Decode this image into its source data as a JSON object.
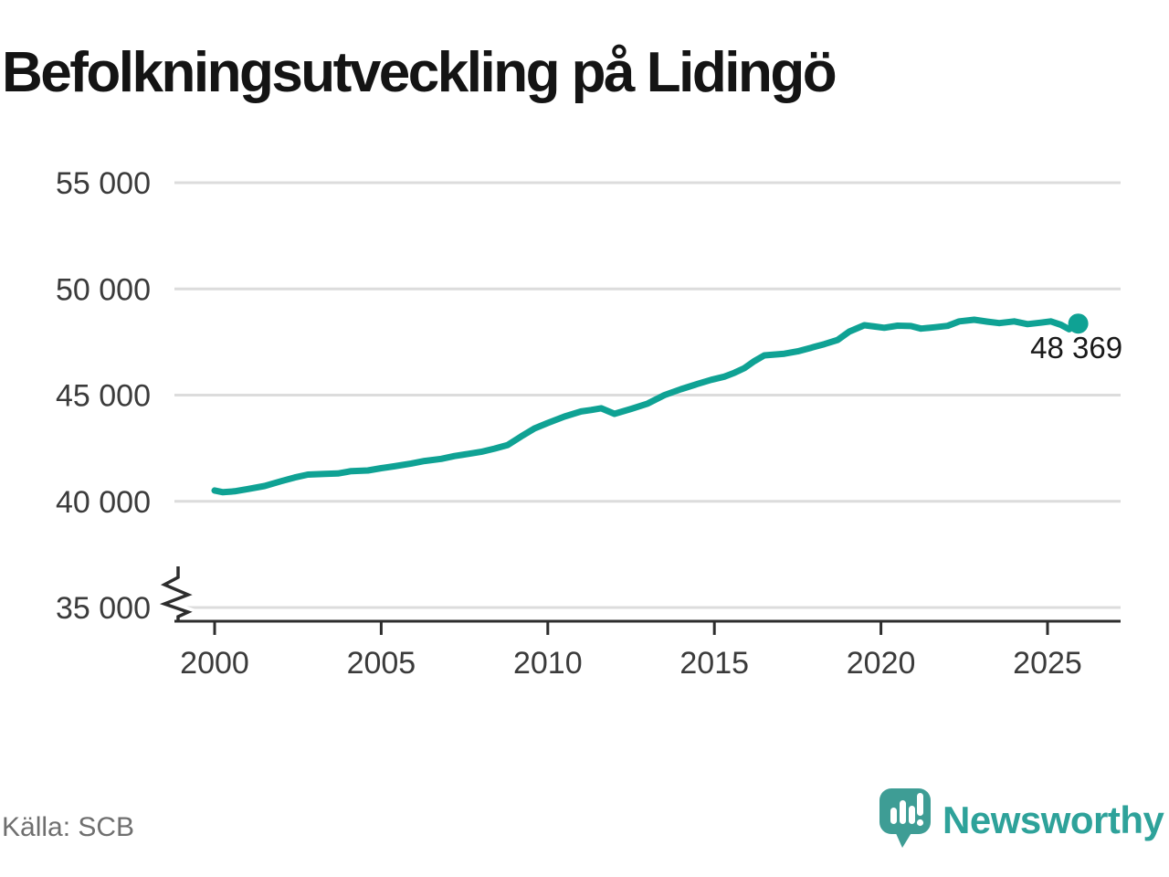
{
  "header": {
    "title": "Befolkningsutveckling på Lidingö"
  },
  "footer": {
    "source": "Källa: SCB",
    "logo_text": "Newsworthy"
  },
  "colors": {
    "line": "#0fa294",
    "logo_icon": "#3e9d95",
    "logo_text": "#2ea29a",
    "grid": "#dcdcdc",
    "axis": "#2d2d2d",
    "tick_label": "#3b3b3b",
    "title": "#141414",
    "source": "#6f6f6f",
    "background": "#ffffff"
  },
  "chart_data": {
    "type": "line",
    "title": "Befolkningsutveckling på Lidingö",
    "xlabel": "",
    "ylabel": "",
    "grid": true,
    "legend": false,
    "axis_break": true,
    "ylim": [
      35000,
      55000
    ],
    "xlim": [
      1998.8,
      2027.3
    ],
    "x_ticks": [
      2000,
      2005,
      2010,
      2015,
      2020,
      2025
    ],
    "y_ticks": [
      {
        "value": 35000,
        "label": "35 000"
      },
      {
        "value": 40000,
        "label": "40 000"
      },
      {
        "value": 45000,
        "label": "45 000"
      },
      {
        "value": 50000,
        "label": "50 000"
      },
      {
        "value": 55000,
        "label": "55 000"
      }
    ],
    "end_label": "48 369",
    "end_value": 48369,
    "series": [
      {
        "points": [
          [
            2000.0,
            40510
          ],
          [
            2000.25,
            40430
          ],
          [
            2000.6,
            40470
          ],
          [
            2001.0,
            40580
          ],
          [
            2001.5,
            40720
          ],
          [
            2002.0,
            40950
          ],
          [
            2002.4,
            41120
          ],
          [
            2002.8,
            41260
          ],
          [
            2003.3,
            41290
          ],
          [
            2003.7,
            41310
          ],
          [
            2004.1,
            41420
          ],
          [
            2004.6,
            41450
          ],
          [
            2005.0,
            41560
          ],
          [
            2005.4,
            41650
          ],
          [
            2005.9,
            41780
          ],
          [
            2006.3,
            41900
          ],
          [
            2006.8,
            42000
          ],
          [
            2007.2,
            42130
          ],
          [
            2007.6,
            42230
          ],
          [
            2008.0,
            42330
          ],
          [
            2008.4,
            42480
          ],
          [
            2008.8,
            42650
          ],
          [
            2009.2,
            43050
          ],
          [
            2009.6,
            43430
          ],
          [
            2010.0,
            43690
          ],
          [
            2010.5,
            43990
          ],
          [
            2011.0,
            44230
          ],
          [
            2011.3,
            44300
          ],
          [
            2011.6,
            44380
          ],
          [
            2012.0,
            44120
          ],
          [
            2012.5,
            44350
          ],
          [
            2013.0,
            44600
          ],
          [
            2013.5,
            45000
          ],
          [
            2014.0,
            45280
          ],
          [
            2014.5,
            45530
          ],
          [
            2014.9,
            45720
          ],
          [
            2015.3,
            45870
          ],
          [
            2015.6,
            46050
          ],
          [
            2015.9,
            46270
          ],
          [
            2016.2,
            46600
          ],
          [
            2016.5,
            46870
          ],
          [
            2017.1,
            46950
          ],
          [
            2017.5,
            47060
          ],
          [
            2017.9,
            47230
          ],
          [
            2018.3,
            47400
          ],
          [
            2018.7,
            47600
          ],
          [
            2019.05,
            47990
          ],
          [
            2019.5,
            48290
          ],
          [
            2019.8,
            48230
          ],
          [
            2020.1,
            48170
          ],
          [
            2020.5,
            48270
          ],
          [
            2020.9,
            48250
          ],
          [
            2021.2,
            48130
          ],
          [
            2021.6,
            48190
          ],
          [
            2022.0,
            48260
          ],
          [
            2022.35,
            48470
          ],
          [
            2022.8,
            48550
          ],
          [
            2023.2,
            48460
          ],
          [
            2023.55,
            48390
          ],
          [
            2024.0,
            48470
          ],
          [
            2024.4,
            48340
          ],
          [
            2024.8,
            48410
          ],
          [
            2025.1,
            48470
          ],
          [
            2025.4,
            48310
          ],
          [
            2025.65,
            48100
          ],
          [
            2025.92,
            48369
          ]
        ]
      }
    ]
  }
}
